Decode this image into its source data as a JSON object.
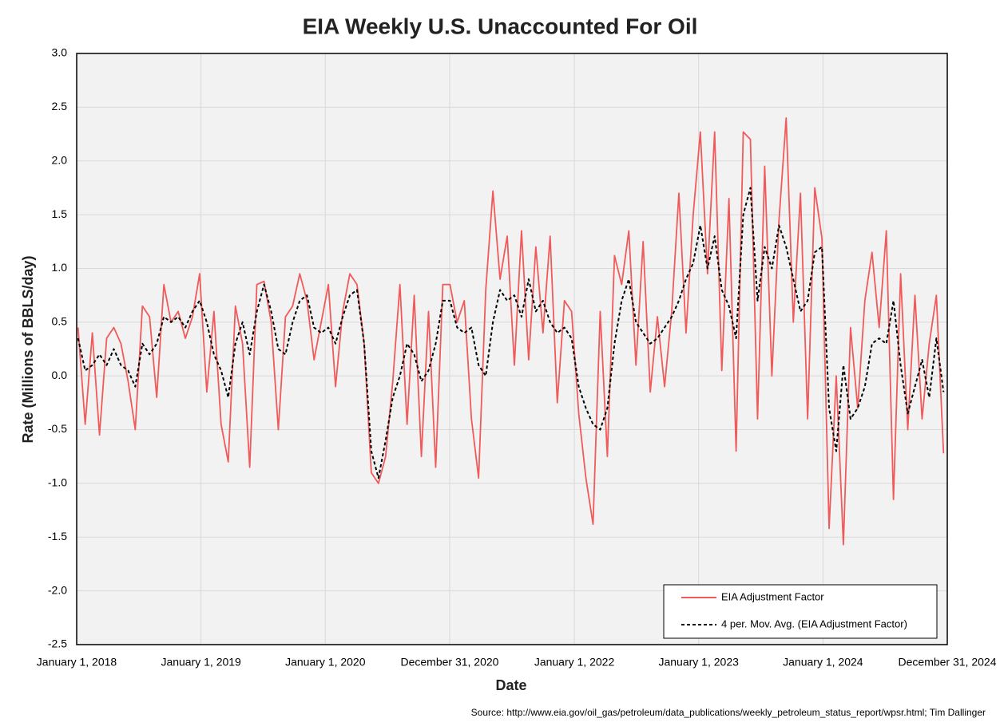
{
  "chart_data": {
    "type": "line",
    "title": "EIA Weekly U.S. Unaccounted For Oil",
    "xlabel": "Date",
    "ylabel": "Rate (Millions of BBLS/day)",
    "source": "Source: http://www.eia.gov/oil_gas/petroleum/data_publications/weekly_petroleum_status_report/wpsr.html; Tim Dallinger",
    "x": [
      "2018-01-05",
      "2018-01-26",
      "2018-02-16",
      "2018-03-09",
      "2018-03-30",
      "2018-04-20",
      "2018-05-11",
      "2018-06-01",
      "2018-06-22",
      "2018-07-13",
      "2018-08-03",
      "2018-08-24",
      "2018-09-14",
      "2018-10-05",
      "2018-10-26",
      "2018-11-16",
      "2018-12-07",
      "2018-12-28",
      "2019-01-18",
      "2019-02-08",
      "2019-03-01",
      "2019-03-22",
      "2019-04-12",
      "2019-05-03",
      "2019-05-24",
      "2019-06-14",
      "2019-07-05",
      "2019-07-26",
      "2019-08-16",
      "2019-09-06",
      "2019-09-27",
      "2019-10-18",
      "2019-11-08",
      "2019-11-29",
      "2019-12-20",
      "2020-01-10",
      "2020-01-31",
      "2020-02-21",
      "2020-03-13",
      "2020-04-03",
      "2020-04-24",
      "2020-05-15",
      "2020-06-05",
      "2020-06-26",
      "2020-07-17",
      "2020-08-07",
      "2020-08-28",
      "2020-09-18",
      "2020-10-09",
      "2020-10-30",
      "2020-11-20",
      "2020-12-11",
      "2021-01-01",
      "2021-01-22",
      "2021-02-12",
      "2021-03-05",
      "2021-03-26",
      "2021-04-16",
      "2021-05-07",
      "2021-05-28",
      "2021-06-18",
      "2021-07-09",
      "2021-07-30",
      "2021-08-20",
      "2021-09-10",
      "2021-10-01",
      "2021-10-22",
      "2021-11-12",
      "2021-12-03",
      "2021-12-24",
      "2022-01-14",
      "2022-02-04",
      "2022-02-25",
      "2022-03-18",
      "2022-04-08",
      "2022-04-29",
      "2022-05-20",
      "2022-06-10",
      "2022-07-01",
      "2022-07-22",
      "2022-08-12",
      "2022-09-02",
      "2022-09-23",
      "2022-10-14",
      "2022-11-04",
      "2022-11-25",
      "2022-12-16",
      "2023-01-06",
      "2023-01-27",
      "2023-02-17",
      "2023-03-10",
      "2023-03-31",
      "2023-04-21",
      "2023-05-12",
      "2023-06-02",
      "2023-06-23",
      "2023-07-14",
      "2023-08-04",
      "2023-08-25",
      "2023-09-15",
      "2023-10-06",
      "2023-10-27",
      "2023-11-17",
      "2023-12-08",
      "2023-12-29",
      "2024-01-19",
      "2024-02-09",
      "2024-03-01",
      "2024-03-22",
      "2024-04-12",
      "2024-05-03",
      "2024-05-24",
      "2024-06-14",
      "2024-07-05",
      "2024-07-26",
      "2024-08-16",
      "2024-09-06",
      "2024-09-27",
      "2024-10-18",
      "2024-11-08",
      "2024-11-29",
      "2024-12-20"
    ],
    "series": [
      {
        "name": "EIA Adjustment Factor",
        "color": "#f05a5a",
        "line_style": "solid",
        "values": [
          0.45,
          -0.45,
          0.4,
          -0.55,
          0.35,
          0.45,
          0.3,
          -0.05,
          -0.5,
          0.65,
          0.55,
          -0.2,
          0.85,
          0.5,
          0.6,
          0.35,
          0.55,
          0.95,
          -0.15,
          0.6,
          -0.45,
          -0.8,
          0.65,
          0.3,
          -0.85,
          0.85,
          0.88,
          0.5,
          -0.5,
          0.55,
          0.65,
          0.95,
          0.7,
          0.15,
          0.5,
          0.85,
          -0.1,
          0.6,
          0.95,
          0.85,
          0.3,
          -0.9,
          -1.0,
          -0.75,
          -0.05,
          0.85,
          -0.45,
          0.75,
          -0.75,
          0.6,
          -0.85,
          0.85,
          0.85,
          0.5,
          0.7,
          -0.4,
          -0.95,
          0.8,
          1.72,
          0.9,
          1.3,
          0.1,
          1.35,
          0.15,
          1.2,
          0.4,
          1.3,
          -0.25,
          0.7,
          0.6,
          -0.35,
          -0.95,
          -1.38,
          0.6,
          -0.75,
          1.12,
          0.85,
          1.35,
          0.1,
          1.25,
          -0.15,
          0.55,
          -0.1,
          0.6,
          1.7,
          0.4,
          1.5,
          2.27,
          0.95,
          2.27,
          0.05,
          1.65,
          -0.7,
          2.27,
          2.2,
          -0.4,
          1.95,
          0.0,
          1.45,
          2.4,
          0.5,
          1.7,
          -0.4,
          1.75,
          1.28,
          -1.42,
          0.0,
          -1.57,
          0.45,
          -0.3,
          0.7,
          1.15,
          0.45,
          1.35,
          -1.15,
          0.95,
          -0.5,
          0.75,
          -0.4,
          0.3,
          0.75,
          -0.72
        ]
      },
      {
        "name": "4 per. Mov. Avg. (EIA Adjustment Factor)",
        "color": "#000000",
        "line_style": "dashed",
        "values": [
          0.35,
          0.05,
          0.1,
          0.2,
          0.1,
          0.25,
          0.1,
          0.05,
          -0.1,
          0.3,
          0.2,
          0.3,
          0.55,
          0.5,
          0.55,
          0.45,
          0.6,
          0.7,
          0.5,
          0.2,
          0.05,
          -0.2,
          0.3,
          0.5,
          0.2,
          0.6,
          0.85,
          0.6,
          0.25,
          0.2,
          0.5,
          0.7,
          0.75,
          0.45,
          0.4,
          0.45,
          0.3,
          0.55,
          0.75,
          0.8,
          0.3,
          -0.7,
          -0.95,
          -0.6,
          -0.2,
          0.0,
          0.3,
          0.2,
          -0.05,
          0.05,
          0.3,
          0.7,
          0.7,
          0.45,
          0.4,
          0.45,
          0.1,
          0.0,
          0.5,
          0.8,
          0.7,
          0.75,
          0.55,
          0.9,
          0.6,
          0.7,
          0.5,
          0.4,
          0.45,
          0.35,
          -0.1,
          -0.3,
          -0.45,
          -0.5,
          -0.3,
          0.3,
          0.7,
          0.9,
          0.5,
          0.4,
          0.3,
          0.35,
          0.45,
          0.55,
          0.7,
          0.9,
          1.05,
          1.4,
          1.0,
          1.3,
          0.8,
          0.65,
          0.35,
          1.5,
          1.75,
          0.7,
          1.2,
          1.0,
          1.4,
          1.2,
          0.9,
          0.6,
          0.7,
          1.15,
          1.2,
          -0.3,
          -0.7,
          0.1,
          -0.4,
          -0.3,
          -0.1,
          0.3,
          0.35,
          0.3,
          0.7,
          0.1,
          -0.35,
          -0.1,
          0.15,
          -0.2,
          0.35,
          -0.15
        ]
      }
    ],
    "xlim": [
      "2018-01-01",
      "2024-12-31"
    ],
    "xticks": [
      {
        "value": "2018-01-01",
        "label": "January 1, 2018"
      },
      {
        "value": "2019-01-01",
        "label": "January 1, 2019"
      },
      {
        "value": "2020-01-01",
        "label": "January 1, 2020"
      },
      {
        "value": "2020-12-31",
        "label": "December 31, 2020"
      },
      {
        "value": "2022-01-01",
        "label": "January 1, 2022"
      },
      {
        "value": "2023-01-01",
        "label": "January 1, 2023"
      },
      {
        "value": "2024-01-01",
        "label": "January 1, 2024"
      },
      {
        "value": "2024-12-31",
        "label": "December 31, 2024"
      }
    ],
    "ylim": [
      -2.5,
      3.0
    ],
    "yticks": [
      {
        "value": -2.5,
        "label": "-2.5"
      },
      {
        "value": -2,
        "label": "-2.0"
      },
      -1.5,
      {
        "value": -1,
        "label": "-1.0"
      },
      -0.5,
      {
        "value": 0,
        "label": "0.0"
      },
      0.5,
      {
        "value": 1,
        "label": "1.0"
      },
      1.5,
      {
        "value": 2,
        "label": "2.0"
      },
      2.5,
      {
        "value": 3,
        "label": "3.0"
      }
    ],
    "grid": true,
    "legend": "lower right"
  }
}
